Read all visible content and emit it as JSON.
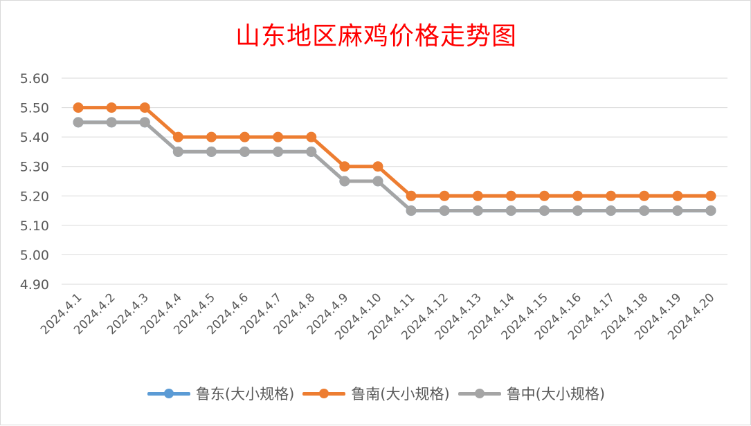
{
  "chart_data": {
    "type": "line",
    "title": "山东地区麻鸡价格走势图",
    "categories": [
      "2024.4.1",
      "2024.4.2",
      "2024.4.3",
      "2024.4.4",
      "2024.4.5",
      "2024.4.6",
      "2024.4.7",
      "2024.4.8",
      "2024.4.9",
      "2024.4.10",
      "2024.4.11",
      "2024.4.12",
      "2024.4.13",
      "2024.4.14",
      "2024.4.15",
      "2024.4.16",
      "2024.4.17",
      "2024.4.18",
      "2024.4.19",
      "2024.4.20"
    ],
    "yticks": [
      "4.90",
      "5.00",
      "5.10",
      "5.20",
      "5.30",
      "5.40",
      "5.50",
      "5.60"
    ],
    "ylim": [
      4.9,
      5.6
    ],
    "grid": true,
    "legend_position": "bottom",
    "series": [
      {
        "name": "鲁东(大小规格)",
        "color": "#5b9bd5",
        "values": [
          5.45,
          5.45,
          5.45,
          5.35,
          5.35,
          5.35,
          5.35,
          5.35,
          5.25,
          5.25,
          5.15,
          5.15,
          5.15,
          5.15,
          5.15,
          5.15,
          5.15,
          5.15,
          5.15,
          5.15
        ]
      },
      {
        "name": "鲁南(大小规格)",
        "color": "#ed7d31",
        "values": [
          5.5,
          5.5,
          5.5,
          5.4,
          5.4,
          5.4,
          5.4,
          5.4,
          5.3,
          5.3,
          5.2,
          5.2,
          5.2,
          5.2,
          5.2,
          5.2,
          5.2,
          5.2,
          5.2,
          5.2
        ]
      },
      {
        "name": "鲁中(大小规格)",
        "color": "#a5a5a5",
        "values": [
          5.45,
          5.45,
          5.45,
          5.35,
          5.35,
          5.35,
          5.35,
          5.35,
          5.25,
          5.25,
          5.15,
          5.15,
          5.15,
          5.15,
          5.15,
          5.15,
          5.15,
          5.15,
          5.15,
          5.15
        ]
      }
    ]
  }
}
